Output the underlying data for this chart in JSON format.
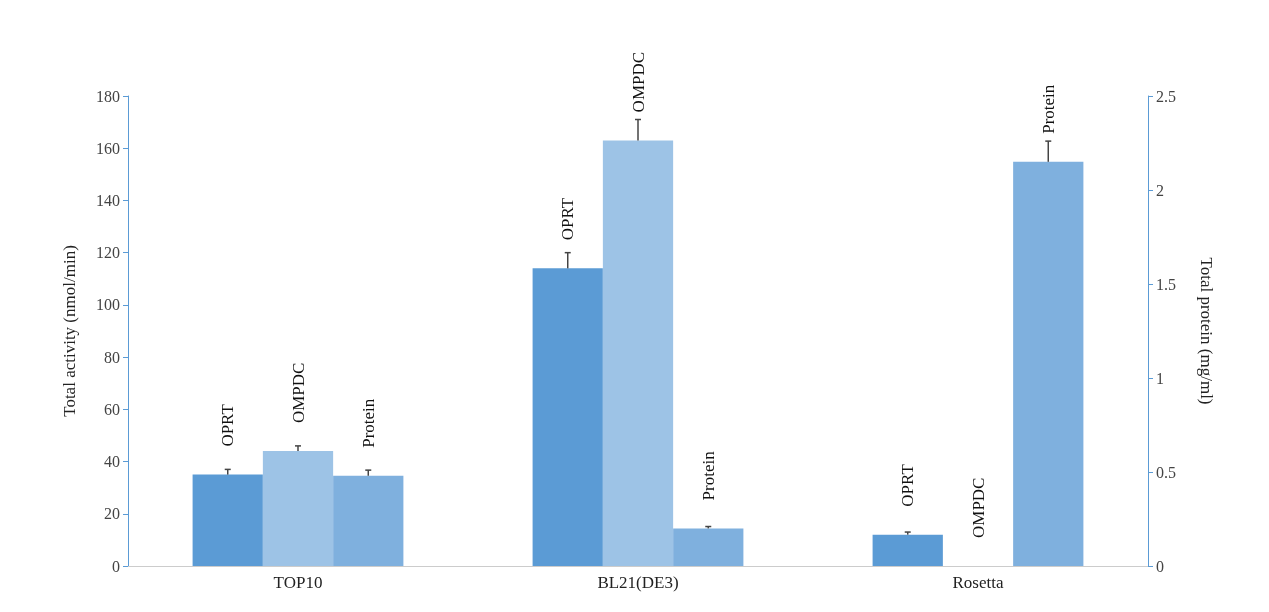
{
  "chart_data": {
    "type": "bar",
    "categories": [
      "TOP10",
      "BL21(DE3)",
      "Rosetta"
    ],
    "ylabel": "Total activity (nmol/min)",
    "y2label": "Total protein (mg/ml)",
    "ylim": [
      0,
      180
    ],
    "yticks": [
      0,
      20,
      40,
      60,
      80,
      100,
      120,
      140,
      160,
      180
    ],
    "y2lim": [
      0,
      2.5
    ],
    "y2ticks": [
      0,
      0.5,
      1,
      1.5,
      2,
      2.5
    ],
    "grid": false,
    "legend": false,
    "series": [
      {
        "name": "OPRT",
        "color": "#5b9bd5",
        "values": [
          35,
          114,
          12
        ],
        "errors": [
          2,
          6,
          1
        ]
      },
      {
        "name": "OMPDC",
        "color": "#9dc3e6",
        "values": [
          44,
          163,
          0
        ],
        "errors": [
          2,
          8,
          null
        ]
      },
      {
        "name": "Protein",
        "color": "#7fb0de",
        "axis": "y2",
        "values": [
          0.48,
          0.2,
          2.15
        ],
        "errors": [
          0.03,
          0.01,
          0.11
        ]
      }
    ]
  }
}
